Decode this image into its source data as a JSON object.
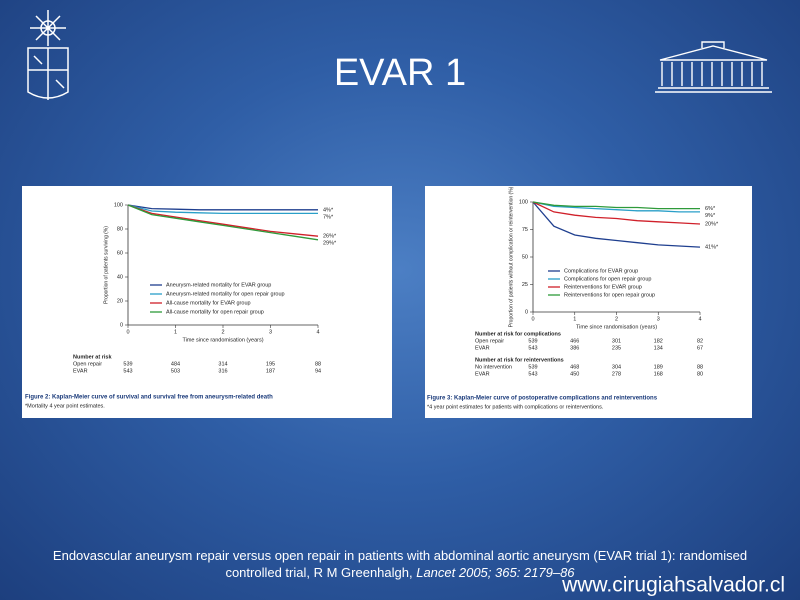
{
  "title": "EVAR 1",
  "chart_data": [
    {
      "type": "line",
      "ylabel": "Proportion of patients surviving (%)",
      "xlabel": "Time since randomisation (years)",
      "x": [
        0,
        0.5,
        1,
        1.5,
        2,
        2.5,
        3,
        3.5,
        4
      ],
      "xlim": [
        0,
        4
      ],
      "xticks": [
        0,
        1,
        2,
        3,
        4
      ],
      "ylim": [
        0,
        100
      ],
      "yticks": [
        0,
        20,
        40,
        60,
        80,
        100
      ],
      "series": [
        {
          "name": "Aneurysm-related mortality for EVAR group",
          "color": "#1f3f8f",
          "values": [
            100,
            97,
            96.5,
            96,
            96,
            96,
            96,
            96,
            96
          ],
          "end_label": "4%*"
        },
        {
          "name": "Aneurysm-related mortality for open repair group",
          "color": "#2a9fc8",
          "values": [
            100,
            95,
            94,
            93.5,
            93,
            93,
            93,
            93,
            93
          ],
          "end_label": "7%*"
        },
        {
          "name": "All-cause mortality for EVAR group",
          "color": "#d0202a",
          "values": [
            100,
            93,
            90,
            87,
            84,
            81,
            78,
            76,
            74
          ],
          "end_label": "26%*"
        },
        {
          "name": "All-cause mortality for open repair group",
          "color": "#2e9a3a",
          "values": [
            100,
            92,
            89,
            86,
            83,
            80,
            77,
            74,
            71
          ],
          "end_label": "29%*"
        }
      ],
      "risk_tables": [
        {
          "title": "Number at risk",
          "rows": [
            {
              "label": "Open repair",
              "values": [
                539,
                484,
                314,
                195,
                88
              ]
            },
            {
              "label": "EVAR",
              "values": [
                543,
                503,
                316,
                187,
                94
              ]
            }
          ]
        }
      ],
      "caption": "Figure 2: Kaplan-Meier curve of survival and survival free from aneurysm-related death",
      "footnote": "*Mortality 4 year point estimates."
    },
    {
      "type": "line",
      "ylabel": "Proportion of patients without complication or reintervention (%)",
      "xlabel": "Time since randomisation (years)",
      "x": [
        0,
        0.5,
        1,
        1.5,
        2,
        2.5,
        3,
        3.5,
        4
      ],
      "xlim": [
        0,
        4
      ],
      "xticks": [
        0,
        1,
        2,
        3,
        4
      ],
      "ylim": [
        0,
        100
      ],
      "yticks": [
        0,
        25,
        50,
        75,
        100
      ],
      "series": [
        {
          "name": "Complications for EVAR group",
          "color": "#1f3f8f",
          "values": [
            100,
            78,
            70,
            67,
            65,
            63,
            61,
            60,
            59
          ],
          "end_label": "41%*"
        },
        {
          "name": "Complications for open repair group",
          "color": "#2a9fc8",
          "values": [
            100,
            96,
            95,
            94,
            93,
            92,
            92,
            91,
            91
          ],
          "end_label": "9%*"
        },
        {
          "name": "Reinterventions for EVAR group",
          "color": "#d0202a",
          "values": [
            100,
            91,
            88,
            86,
            85,
            83,
            82,
            81,
            80
          ],
          "end_label": "20%*"
        },
        {
          "name": "Reinterventions for open repair group",
          "color": "#2e9a3a",
          "values": [
            100,
            97,
            96,
            96,
            95,
            95,
            94,
            94,
            94
          ],
          "end_label": "6%*"
        }
      ],
      "risk_tables": [
        {
          "title": "Number at risk for complications",
          "rows": [
            {
              "label": "Open repair",
              "values": [
                539,
                466,
                301,
                182,
                82
              ]
            },
            {
              "label": "EVAR",
              "values": [
                543,
                386,
                235,
                134,
                67
              ]
            }
          ]
        },
        {
          "title": "Number at risk for reinterventions",
          "rows": [
            {
              "label": "No intervention",
              "values": [
                539,
                468,
                304,
                189,
                88
              ]
            },
            {
              "label": "EVAR",
              "values": [
                543,
                450,
                278,
                168,
                80
              ]
            }
          ]
        }
      ],
      "caption": "Figure 3: Kaplan-Meier curve of postoperative complications and reinterventions",
      "footnote": "*4 year point estimates for patients with complications or reinterventions."
    }
  ],
  "citation": "Endovascular aneurysm repair versus open repair in patients with abdominal aortic aneurysm (EVAR trial 1): randomised controlled trial, R M Greenhalgh, ",
  "citation_source": "Lancet 2005; 365: 2179–86",
  "website": "www.cirugiahsalvador.cl"
}
